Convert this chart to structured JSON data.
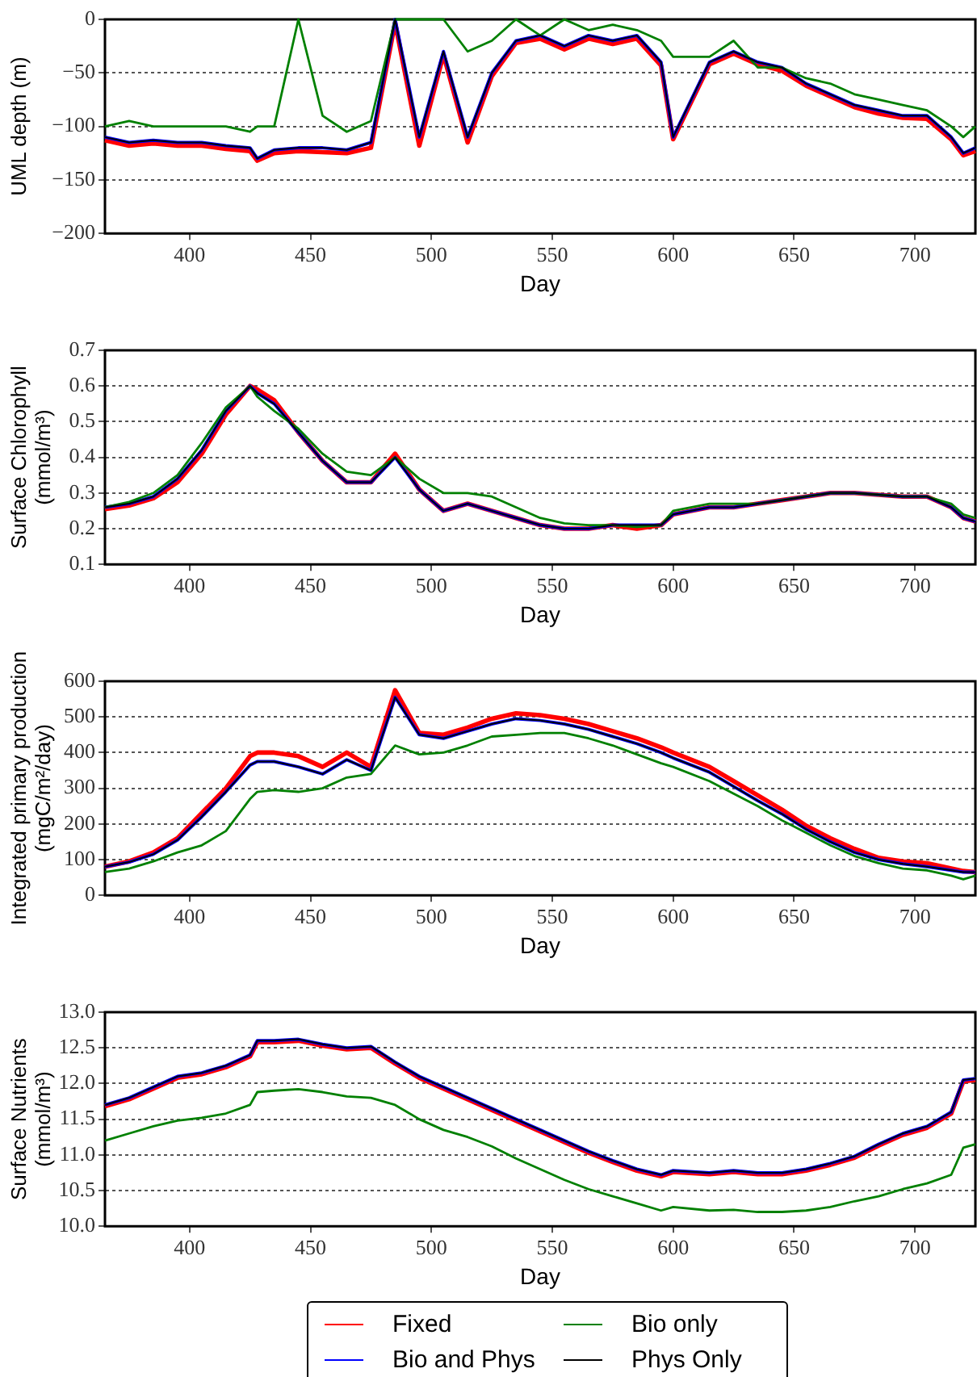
{
  "chart_data": [
    {
      "type": "line",
      "xlabel": "Day",
      "ylabel": "UML depth (m)",
      "xlim": [
        365,
        725
      ],
      "xticks": [
        400,
        450,
        500,
        550,
        600,
        650,
        700
      ],
      "ylim": [
        -200,
        0
      ],
      "yticks": [
        -200,
        -150,
        -100,
        -50,
        0
      ],
      "grid": "y",
      "x": [
        365,
        375,
        385,
        395,
        405,
        415,
        425,
        428,
        435,
        445,
        455,
        465,
        475,
        485,
        495,
        505,
        515,
        525,
        535,
        545,
        555,
        565,
        575,
        585,
        595,
        600,
        615,
        625,
        635,
        645,
        655,
        665,
        675,
        685,
        695,
        705,
        715,
        720,
        725
      ],
      "series": [
        {
          "color": "#ff0000",
          "values": [
            -113,
            -118,
            -116,
            -118,
            -118,
            -121,
            -123,
            -132,
            -125,
            -123,
            -124,
            -125,
            -120,
            -3,
            -118,
            -33,
            -115,
            -53,
            -22,
            -18,
            -28,
            -18,
            -23,
            -18,
            -43,
            -112,
            -42,
            -32,
            -42,
            -48,
            -62,
            -72,
            -82,
            -88,
            -92,
            -93,
            -112,
            -127,
            -123
          ]
        },
        {
          "color": "#0000ff",
          "values": [
            -110,
            -115,
            -113,
            -115,
            -115,
            -118,
            -120,
            -130,
            -122,
            -120,
            -120,
            -122,
            -115,
            0,
            -110,
            -30,
            -110,
            -50,
            -20,
            -15,
            -25,
            -15,
            -20,
            -15,
            -40,
            -110,
            -40,
            -30,
            -40,
            -45,
            -60,
            -70,
            -80,
            -85,
            -90,
            -90,
            -110,
            -125,
            -120
          ]
        },
        {
          "color": "#008000",
          "values": [
            -100,
            -95,
            -100,
            -100,
            -100,
            -100,
            -105,
            -100,
            -100,
            0,
            -90,
            -105,
            -95,
            0,
            0,
            0,
            -30,
            -20,
            0,
            -15,
            0,
            -10,
            -5,
            -10,
            -20,
            -35,
            -35,
            -20,
            -45,
            -45,
            -55,
            -60,
            -70,
            -75,
            -80,
            -85,
            -100,
            -110,
            -100
          ]
        },
        {
          "color": "#000000",
          "values": [
            -110,
            -115,
            -113,
            -115,
            -115,
            -118,
            -120,
            -130,
            -122,
            -120,
            -120,
            -122,
            -115,
            0,
            -110,
            -30,
            -110,
            -50,
            -20,
            -15,
            -25,
            -15,
            -20,
            -15,
            -40,
            -110,
            -40,
            -30,
            -40,
            -45,
            -60,
            -70,
            -80,
            -85,
            -90,
            -90,
            -110,
            -125,
            -120
          ]
        }
      ]
    },
    {
      "type": "line",
      "xlabel": "Day",
      "ylabel": "Surface Chlorophyll\n(mmol/m³)",
      "xlim": [
        365,
        725
      ],
      "xticks": [
        400,
        450,
        500,
        550,
        600,
        650,
        700
      ],
      "ylim": [
        0.1,
        0.7
      ],
      "yticks": [
        0.1,
        0.2,
        0.3,
        0.4,
        0.5,
        0.6,
        0.7
      ],
      "grid": "y",
      "x": [
        365,
        375,
        385,
        395,
        405,
        415,
        425,
        428,
        435,
        445,
        455,
        465,
        475,
        485,
        495,
        505,
        515,
        525,
        535,
        545,
        555,
        565,
        575,
        585,
        595,
        600,
        615,
        625,
        635,
        645,
        655,
        665,
        675,
        685,
        695,
        705,
        715,
        720,
        725
      ],
      "series": [
        {
          "color": "#ff0000",
          "values": [
            0.255,
            0.265,
            0.285,
            0.33,
            0.41,
            0.52,
            0.6,
            0.59,
            0.56,
            0.47,
            0.39,
            0.33,
            0.33,
            0.41,
            0.31,
            0.25,
            0.27,
            0.25,
            0.23,
            0.21,
            0.2,
            0.2,
            0.21,
            0.2,
            0.21,
            0.24,
            0.26,
            0.26,
            0.27,
            0.28,
            0.29,
            0.3,
            0.3,
            0.295,
            0.29,
            0.29,
            0.26,
            0.23,
            0.22
          ]
        },
        {
          "color": "#0000ff",
          "values": [
            0.26,
            0.27,
            0.29,
            0.34,
            0.42,
            0.53,
            0.6,
            0.58,
            0.55,
            0.47,
            0.39,
            0.33,
            0.33,
            0.4,
            0.31,
            0.25,
            0.27,
            0.25,
            0.23,
            0.21,
            0.2,
            0.2,
            0.21,
            0.21,
            0.21,
            0.24,
            0.26,
            0.26,
            0.27,
            0.28,
            0.29,
            0.3,
            0.3,
            0.295,
            0.29,
            0.29,
            0.26,
            0.23,
            0.22
          ]
        },
        {
          "color": "#008000",
          "values": [
            0.26,
            0.275,
            0.3,
            0.35,
            0.44,
            0.54,
            0.6,
            0.57,
            0.53,
            0.48,
            0.41,
            0.36,
            0.35,
            0.4,
            0.34,
            0.3,
            0.3,
            0.29,
            0.26,
            0.23,
            0.215,
            0.21,
            0.21,
            0.205,
            0.21,
            0.25,
            0.27,
            0.27,
            0.27,
            0.28,
            0.29,
            0.3,
            0.3,
            0.295,
            0.29,
            0.29,
            0.27,
            0.24,
            0.23
          ]
        },
        {
          "color": "#000000",
          "values": [
            0.26,
            0.27,
            0.29,
            0.34,
            0.42,
            0.53,
            0.6,
            0.58,
            0.55,
            0.47,
            0.39,
            0.33,
            0.33,
            0.4,
            0.31,
            0.25,
            0.27,
            0.25,
            0.23,
            0.21,
            0.2,
            0.2,
            0.21,
            0.21,
            0.21,
            0.24,
            0.26,
            0.26,
            0.27,
            0.28,
            0.29,
            0.3,
            0.3,
            0.295,
            0.29,
            0.29,
            0.26,
            0.23,
            0.22
          ]
        }
      ]
    },
    {
      "type": "line",
      "xlabel": "Day",
      "ylabel": "Integrated primary production\n(mgC/m²/day)",
      "xlim": [
        365,
        725
      ],
      "xticks": [
        400,
        450,
        500,
        550,
        600,
        650,
        700
      ],
      "ylim": [
        0,
        600
      ],
      "yticks": [
        0,
        100,
        200,
        300,
        400,
        500,
        600
      ],
      "grid": "y",
      "x": [
        365,
        375,
        385,
        395,
        405,
        415,
        425,
        428,
        435,
        445,
        455,
        465,
        475,
        485,
        495,
        505,
        515,
        525,
        535,
        545,
        555,
        565,
        575,
        585,
        595,
        600,
        615,
        625,
        635,
        645,
        655,
        665,
        675,
        685,
        695,
        705,
        715,
        720,
        725
      ],
      "series": [
        {
          "color": "#ff0000",
          "values": [
            80,
            95,
            120,
            160,
            230,
            300,
            390,
            400,
            400,
            390,
            360,
            400,
            360,
            575,
            455,
            450,
            470,
            495,
            510,
            505,
            495,
            480,
            460,
            440,
            415,
            400,
            360,
            320,
            280,
            240,
            195,
            160,
            130,
            105,
            95,
            90,
            75,
            68,
            65
          ]
        },
        {
          "color": "#0000ff",
          "values": [
            80,
            93,
            115,
            155,
            220,
            290,
            365,
            375,
            375,
            360,
            340,
            380,
            350,
            555,
            450,
            440,
            460,
            480,
            495,
            490,
            480,
            465,
            445,
            425,
            400,
            385,
            345,
            305,
            265,
            228,
            185,
            150,
            120,
            100,
            88,
            80,
            70,
            65,
            65
          ]
        },
        {
          "color": "#008000",
          "values": [
            65,
            75,
            95,
            120,
            140,
            180,
            270,
            290,
            295,
            290,
            300,
            330,
            340,
            420,
            395,
            400,
            420,
            445,
            450,
            455,
            455,
            440,
            420,
            395,
            370,
            360,
            320,
            285,
            250,
            210,
            175,
            140,
            110,
            90,
            75,
            70,
            55,
            45,
            55
          ]
        },
        {
          "color": "#000000",
          "values": [
            80,
            93,
            115,
            155,
            220,
            290,
            365,
            375,
            375,
            360,
            340,
            380,
            350,
            555,
            450,
            440,
            460,
            480,
            495,
            490,
            480,
            465,
            445,
            425,
            400,
            385,
            345,
            305,
            265,
            228,
            185,
            150,
            120,
            100,
            88,
            80,
            70,
            65,
            65
          ]
        }
      ]
    },
    {
      "type": "line",
      "xlabel": "Day",
      "ylabel": "Surface Nutrients\n(mmol/m³)",
      "xlim": [
        365,
        725
      ],
      "xticks": [
        400,
        450,
        500,
        550,
        600,
        650,
        700
      ],
      "ylim": [
        10,
        13
      ],
      "yticks": [
        {
          "value": 10,
          "label": "10.0"
        },
        10.5,
        {
          "value": 11,
          "label": "11.0"
        },
        11.5,
        {
          "value": 12,
          "label": "12.0"
        },
        12.5,
        {
          "value": 13,
          "label": "13.0"
        }
      ],
      "grid": "y",
      "legend": "bottom",
      "x": [
        365,
        375,
        385,
        395,
        405,
        415,
        425,
        428,
        435,
        445,
        455,
        465,
        475,
        485,
        495,
        505,
        515,
        525,
        535,
        545,
        555,
        565,
        575,
        585,
        595,
        600,
        615,
        625,
        635,
        645,
        655,
        665,
        675,
        685,
        695,
        705,
        715,
        720,
        725
      ],
      "series": [
        {
          "name": "Fixed",
          "color": "#ff0000",
          "values": [
            11.68,
            11.78,
            11.93,
            12.08,
            12.13,
            12.23,
            12.38,
            12.58,
            12.58,
            12.6,
            12.53,
            12.48,
            12.5,
            12.28,
            12.08,
            11.93,
            11.78,
            11.63,
            11.48,
            11.33,
            11.18,
            11.03,
            10.9,
            10.78,
            10.7,
            10.76,
            10.73,
            10.76,
            10.73,
            10.73,
            10.78,
            10.86,
            10.96,
            11.13,
            11.28,
            11.38,
            11.58,
            12.03,
            12.05
          ]
        },
        {
          "name": "Bio and Phys",
          "color": "#0000ff",
          "values": [
            11.7,
            11.8,
            11.95,
            12.1,
            12.15,
            12.25,
            12.4,
            12.6,
            12.6,
            12.62,
            12.55,
            12.5,
            12.52,
            12.3,
            12.1,
            11.95,
            11.8,
            11.65,
            11.5,
            11.35,
            11.2,
            11.05,
            10.92,
            10.8,
            10.72,
            10.78,
            10.75,
            10.78,
            10.75,
            10.75,
            10.8,
            10.88,
            10.98,
            11.15,
            11.3,
            11.4,
            11.6,
            12.05,
            12.07
          ]
        },
        {
          "name": "Bio only",
          "color": "#008000",
          "values": [
            11.2,
            11.3,
            11.4,
            11.48,
            11.52,
            11.58,
            11.7,
            11.88,
            11.9,
            11.92,
            11.88,
            11.82,
            11.8,
            11.7,
            11.5,
            11.35,
            11.25,
            11.12,
            10.95,
            10.8,
            10.65,
            10.52,
            10.42,
            10.32,
            10.22,
            10.27,
            10.22,
            10.23,
            10.2,
            10.2,
            10.22,
            10.27,
            10.35,
            10.42,
            10.52,
            10.6,
            10.72,
            11.1,
            11.15
          ]
        },
        {
          "name": "Phys Only",
          "color": "#000000",
          "values": [
            11.7,
            11.8,
            11.95,
            12.1,
            12.15,
            12.25,
            12.4,
            12.6,
            12.6,
            12.62,
            12.55,
            12.5,
            12.52,
            12.3,
            12.1,
            11.95,
            11.8,
            11.65,
            11.5,
            11.35,
            11.2,
            11.05,
            10.92,
            10.8,
            10.72,
            10.78,
            10.75,
            10.78,
            10.75,
            10.75,
            10.8,
            10.88,
            10.98,
            11.15,
            11.3,
            11.4,
            11.6,
            12.05,
            12.07
          ]
        }
      ]
    }
  ]
}
